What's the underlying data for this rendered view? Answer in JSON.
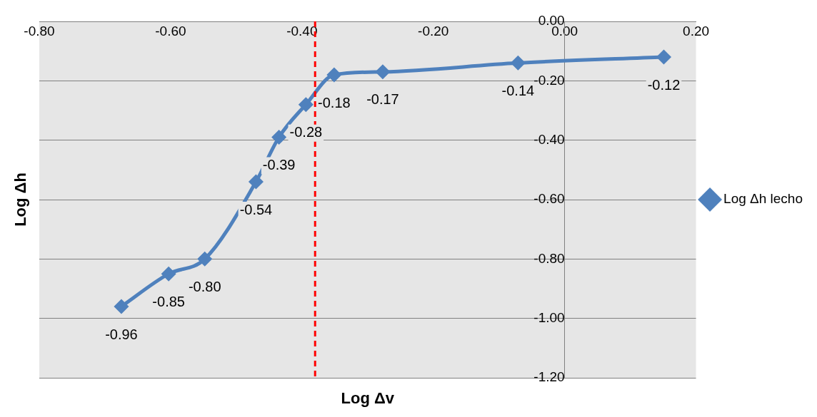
{
  "chart_data": {
    "type": "line",
    "xlabel": "Log Δv",
    "ylabel": "Log Δh",
    "x": [
      -0.675,
      -0.603,
      -0.548,
      -0.47,
      -0.435,
      -0.394,
      -0.351,
      -0.277,
      -0.071,
      0.151
    ],
    "series": [
      {
        "name": "Log Δh lecho",
        "color": "#4f81bd",
        "values": [
          -0.96,
          -0.85,
          -0.8,
          -0.54,
          -0.39,
          -0.28,
          -0.18,
          -0.17,
          -0.14,
          -0.12
        ],
        "value_labels": [
          "-0.96",
          "-0.85",
          "-0.80",
          "-0.54",
          "-0.39",
          "-0.28",
          "-0.18",
          "-0.17",
          "-0.14",
          "-0.12"
        ]
      }
    ],
    "xlim": [
      -0.8,
      0.2
    ],
    "xticks": [
      {
        "value": -0.8,
        "label": "-0.80"
      },
      {
        "value": -0.6,
        "label": "-0.60"
      },
      {
        "value": -0.4,
        "label": "-0.40"
      },
      {
        "value": -0.2,
        "label": "-0.20"
      },
      {
        "value": 0,
        "label": "0.00"
      },
      {
        "value": 0.2,
        "label": "0.20"
      }
    ],
    "ylim": [
      -1.2,
      0
    ],
    "yticks": [
      {
        "value": -1.2,
        "label": "-1.20"
      },
      {
        "value": -1,
        "label": "-1.00"
      },
      {
        "value": -0.8,
        "label": "-0.80"
      },
      {
        "value": -0.6,
        "label": "-0.60"
      },
      {
        "value": -0.4,
        "label": "-0.40"
      },
      {
        "value": -0.2,
        "label": "-0.20"
      },
      {
        "value": 0,
        "label": "0.00"
      }
    ],
    "ref_lines": [
      {
        "axis": "x",
        "value": -0.38,
        "color": "#ff0000",
        "line_style": "dashed"
      }
    ],
    "grid": "y",
    "legend": "right",
    "marker": "diamond",
    "line_style": "solid"
  }
}
